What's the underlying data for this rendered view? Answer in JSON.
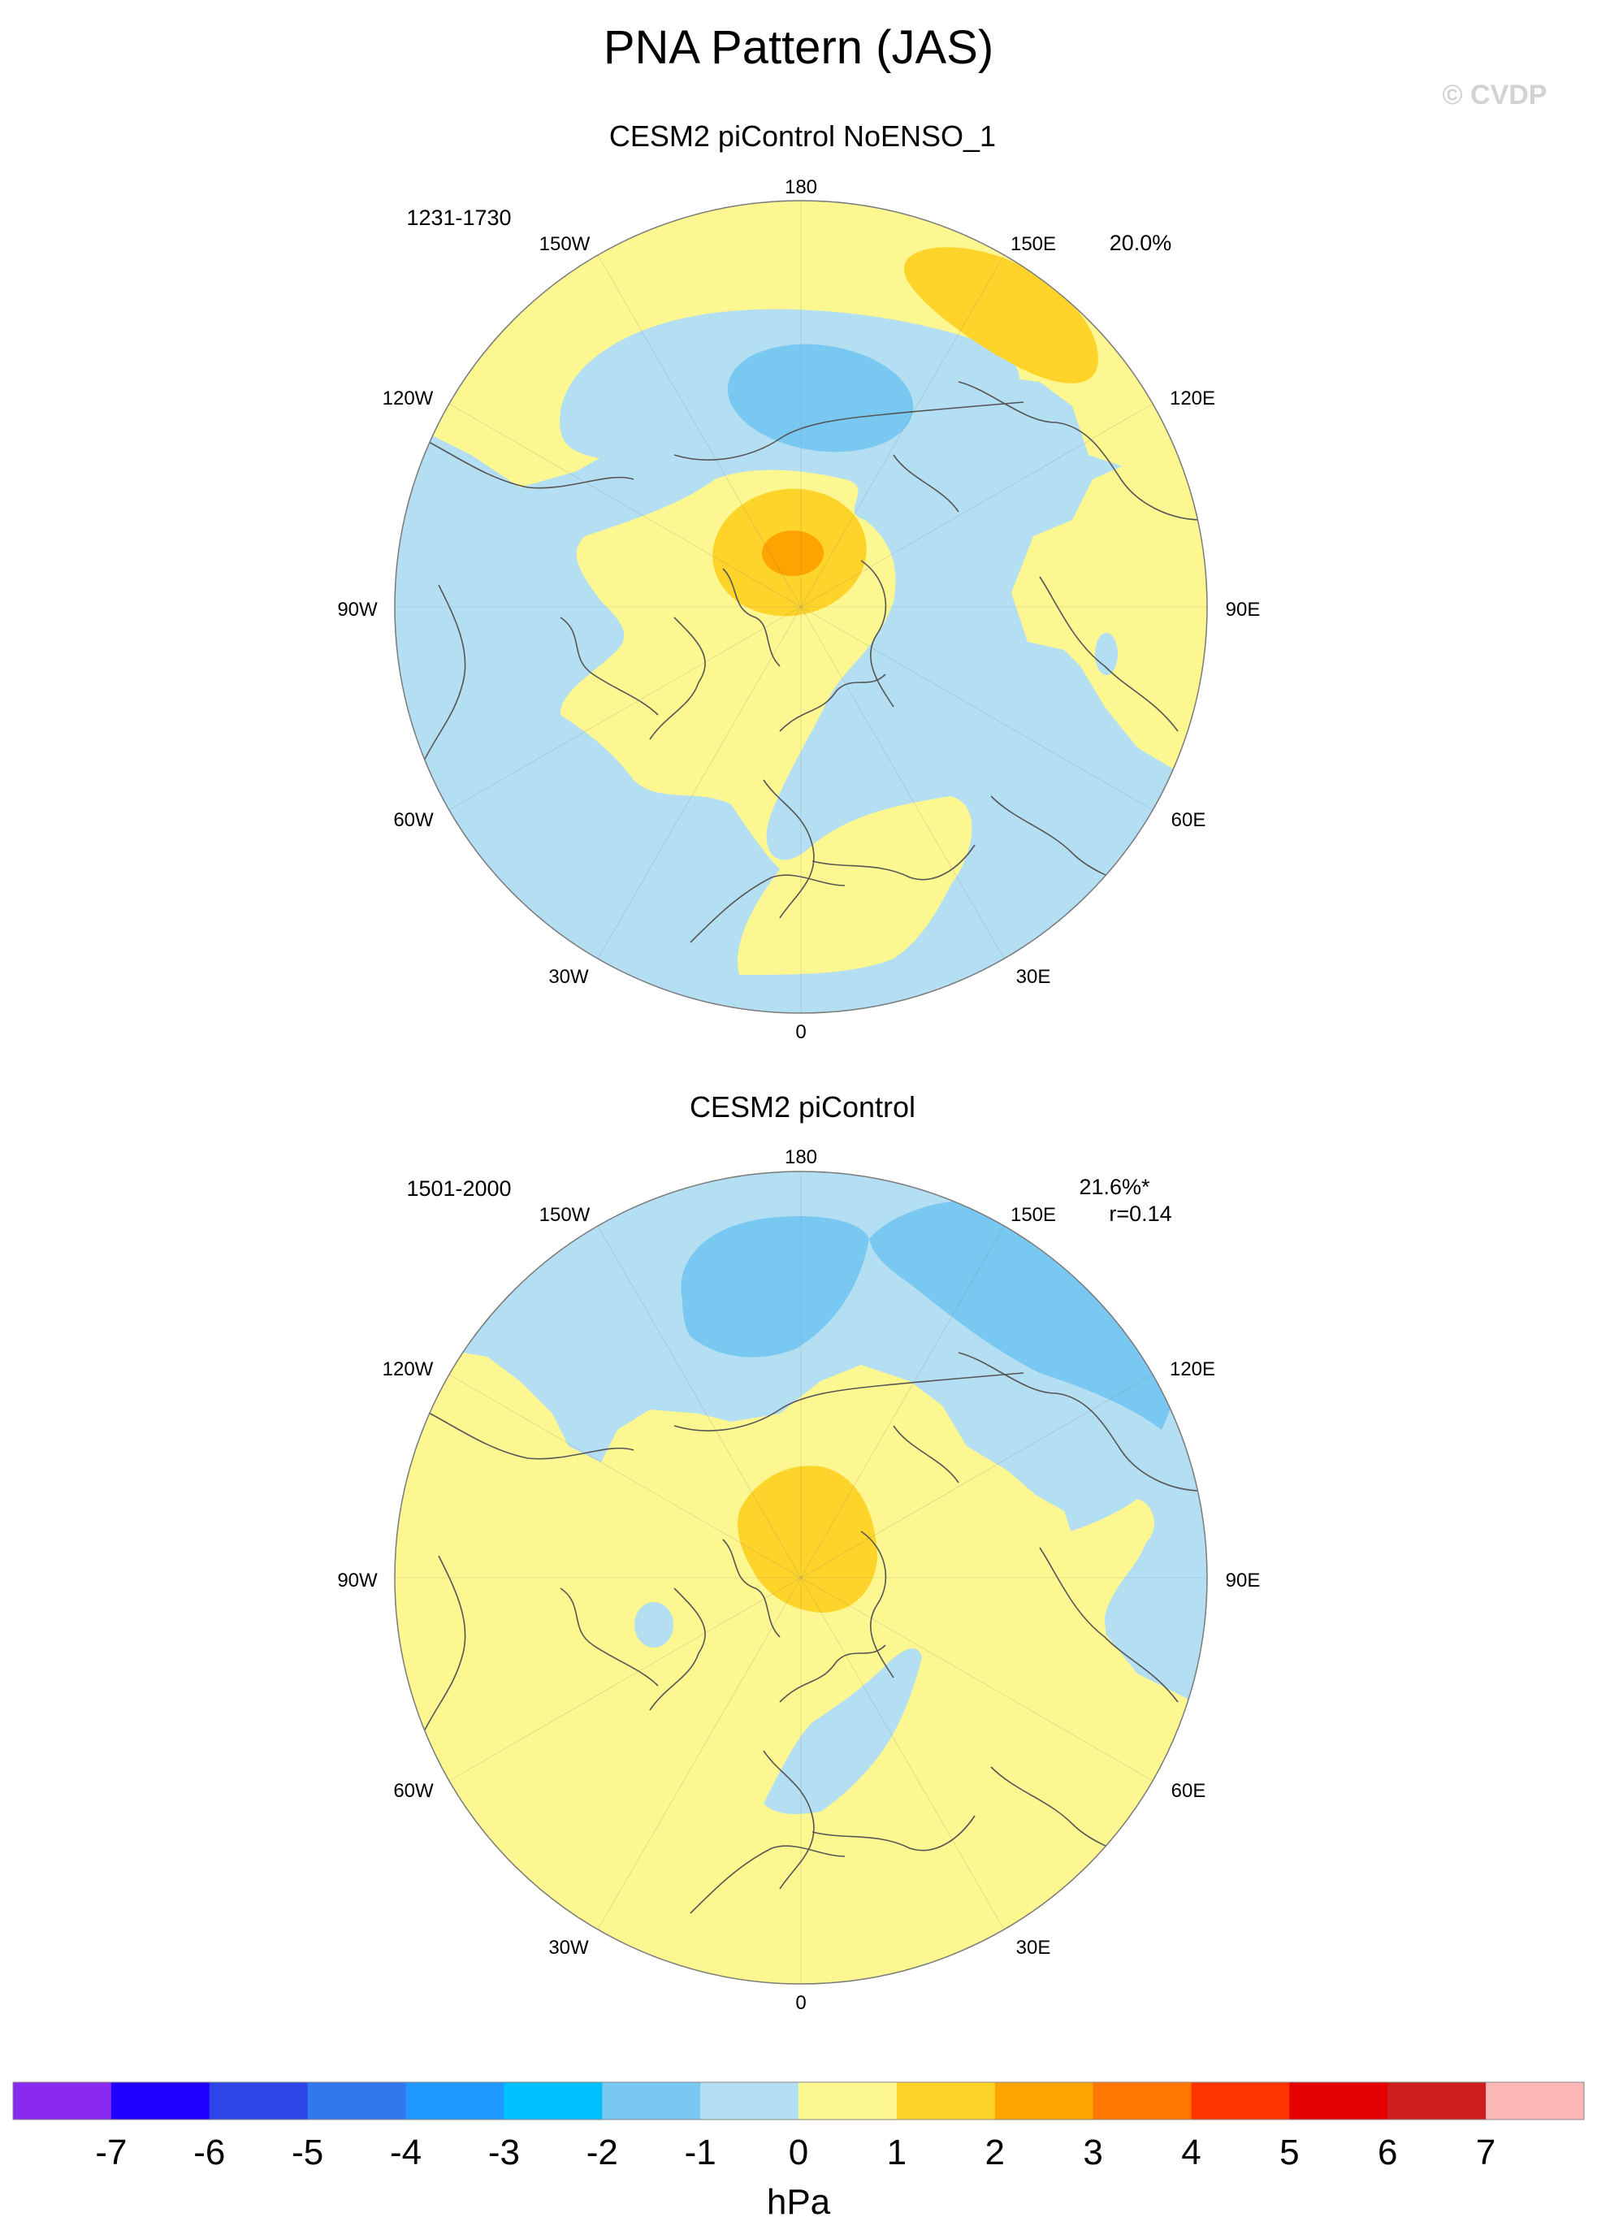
{
  "figure": {
    "title": "PNA Pattern (JAS)",
    "watermark": "© CVDP"
  },
  "panels": [
    {
      "title": "CESM2 piControl NoENSO_1",
      "years": "1231-1730",
      "pct": "20.0%",
      "corr": ""
    },
    {
      "title": "CESM2 piControl",
      "years": "1501-2000",
      "pct": "21.6%*",
      "corr": "r=0.14"
    }
  ],
  "lon_labels": [
    "180",
    "150E",
    "120E",
    "90E",
    "60E",
    "30E",
    "0",
    "30W",
    "60W",
    "90W",
    "120W",
    "150W"
  ],
  "colorbar": {
    "unit": "hPa",
    "ticks": [
      "-7",
      "-6",
      "-5",
      "-4",
      "-3",
      "-2",
      "-1",
      "0",
      "1",
      "2",
      "3",
      "4",
      "5",
      "6",
      "7"
    ],
    "colors": [
      "#8a2af0",
      "#2200ff",
      "#2b45e8",
      "#3377ec",
      "#1e97ff",
      "#00c1ff",
      "#78c8f2",
      "#b4dff2",
      "#fdf791",
      "#fed42b",
      "#fea400",
      "#ff7700",
      "#ff3300",
      "#e30000",
      "#cc1e1e",
      "#fbb6b6"
    ]
  },
  "map_colors": {
    "minus1": "#b4dff2",
    "minus2": "#78c8f2",
    "plus0": "#fdf791",
    "plus1": "#fed42b",
    "plus2": "#fea400",
    "coast": "#555555",
    "rim": "#7a7a7a"
  }
}
